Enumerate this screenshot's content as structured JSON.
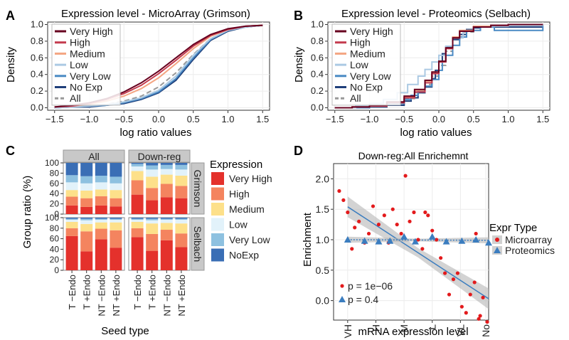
{
  "colors": {
    "very_high": "#67001f",
    "high": "#c43c4e",
    "medium": "#f4a582",
    "low": "#abc9e3",
    "very_low": "#4a8ac4",
    "no_exp": "#1f3f7a",
    "all": "#999999",
    "bar_very_high": "#e4312c",
    "bar_high": "#f4845f",
    "bar_medium": "#fde08a",
    "bar_low": "#e2f2fa",
    "bar_very_low": "#8ec1e0",
    "bar_noexp": "#3a6eb5",
    "microarray": "#e31a1c",
    "proteomics": "#3b7dbf",
    "strip": "#c8c8c8"
  },
  "chart_data": [
    {
      "panel": "A",
      "type": "line",
      "title": "Expression level - MicroArray (Grimson)",
      "xlabel": "log ratio values",
      "ylabel": "Density",
      "xlim": [
        -1.6,
        1.6
      ],
      "ylim": [
        -0.03,
        1.03
      ],
      "xticks": [
        "−1.5",
        "−1.0",
        "−0.5",
        "0.0",
        "0.5",
        "1.0",
        "1.5"
      ],
      "xtick_values": [
        -1.5,
        -1.0,
        -0.5,
        0.0,
        0.5,
        1.0,
        1.5
      ],
      "yticks": [
        "0.0",
        "0.2",
        "0.4",
        "0.6",
        "0.8",
        "1.0"
      ],
      "ytick_values": [
        0,
        0.2,
        0.4,
        0.6,
        0.8,
        1.0
      ],
      "legend": [
        "Very High",
        "High",
        "Medium",
        "Low",
        "Very Low",
        "No Exp",
        "All"
      ],
      "x": [
        -1.5,
        -1.25,
        -1.0,
        -0.75,
        -0.5,
        -0.25,
        0.0,
        0.25,
        0.5,
        0.75,
        1.0,
        1.25,
        1.5
      ],
      "series": [
        {
          "name": "Very High",
          "values": [
            0.01,
            0.03,
            0.06,
            0.11,
            0.19,
            0.3,
            0.44,
            0.6,
            0.76,
            0.88,
            0.95,
            0.98,
            0.99
          ]
        },
        {
          "name": "High",
          "values": [
            0.01,
            0.02,
            0.05,
            0.1,
            0.17,
            0.27,
            0.41,
            0.57,
            0.74,
            0.87,
            0.94,
            0.98,
            0.99
          ]
        },
        {
          "name": "Medium",
          "values": [
            0.01,
            0.02,
            0.04,
            0.08,
            0.14,
            0.23,
            0.36,
            0.53,
            0.71,
            0.86,
            0.94,
            0.98,
            0.99
          ]
        },
        {
          "name": "Low",
          "values": [
            0.0,
            0.01,
            0.02,
            0.04,
            0.07,
            0.12,
            0.21,
            0.38,
            0.63,
            0.83,
            0.93,
            0.97,
            0.99
          ]
        },
        {
          "name": "Very Low",
          "values": [
            0.0,
            0.01,
            0.02,
            0.03,
            0.06,
            0.11,
            0.19,
            0.35,
            0.6,
            0.82,
            0.93,
            0.97,
            0.99
          ]
        },
        {
          "name": "No Exp",
          "values": [
            0.0,
            0.01,
            0.01,
            0.03,
            0.05,
            0.1,
            0.18,
            0.33,
            0.58,
            0.81,
            0.92,
            0.97,
            0.99
          ]
        },
        {
          "name": "All",
          "values": [
            0.0,
            0.01,
            0.02,
            0.04,
            0.08,
            0.14,
            0.25,
            0.42,
            0.64,
            0.83,
            0.93,
            0.97,
            0.99
          ]
        }
      ]
    },
    {
      "panel": "B",
      "type": "line",
      "title": "Expression level - Proteomics (Selbach)",
      "xlabel": "log ratio values",
      "ylabel": "Density",
      "xlim": [
        -1.6,
        1.6
      ],
      "ylim": [
        -0.03,
        1.03
      ],
      "xticks": [
        "−1.5",
        "−1.0",
        "−0.5",
        "0.0",
        "0.5",
        "1.0",
        "1.5"
      ],
      "xtick_values": [
        -1.5,
        -1.0,
        -0.5,
        0.0,
        0.5,
        1.0,
        1.5
      ],
      "yticks": [
        "0.0",
        "0.2",
        "0.4",
        "0.6",
        "0.8",
        "1.0"
      ],
      "ytick_values": [
        0,
        0.2,
        0.4,
        0.6,
        0.8,
        1.0
      ],
      "legend": [
        "Very High",
        "High",
        "Medium",
        "Low",
        "Very Low",
        "No Exp",
        "All"
      ],
      "series": [
        {
          "name": "Very High",
          "x": [
            -1.5,
            -1.25,
            -1.0,
            -0.75,
            -0.5,
            -0.35,
            -0.2,
            -0.1,
            0.0,
            0.1,
            0.2,
            0.3,
            0.5,
            0.75,
            1.0,
            1.5
          ],
          "values": [
            0.0,
            0.01,
            0.03,
            0.07,
            0.14,
            0.22,
            0.33,
            0.43,
            0.56,
            0.72,
            0.84,
            0.92,
            0.97,
            0.99,
            1.0,
            1.0
          ]
        },
        {
          "name": "High",
          "x": [
            -1.5,
            -1.25,
            -1.0,
            -0.75,
            -0.5,
            -0.35,
            -0.2,
            -0.1,
            0.0,
            0.1,
            0.2,
            0.3,
            0.5,
            0.75,
            1.0,
            1.5
          ],
          "values": [
            0.0,
            0.01,
            0.02,
            0.06,
            0.12,
            0.19,
            0.3,
            0.41,
            0.55,
            0.71,
            0.84,
            0.92,
            0.97,
            0.99,
            1.0,
            1.0
          ]
        },
        {
          "name": "Medium",
          "x": [
            -1.5,
            -1.25,
            -1.0,
            -0.75,
            -0.5,
            -0.35,
            -0.2,
            -0.1,
            0.0,
            0.1,
            0.2,
            0.3,
            0.5,
            0.75,
            1.0,
            1.5
          ],
          "values": [
            0.0,
            0.01,
            0.02,
            0.06,
            0.13,
            0.21,
            0.32,
            0.43,
            0.56,
            0.72,
            0.85,
            0.93,
            0.98,
            0.99,
            1.0,
            1.0
          ]
        },
        {
          "name": "Low",
          "x": [
            -1.5,
            -1.2,
            -1.0,
            -0.8,
            -0.6,
            -0.45,
            -0.3,
            -0.2,
            -0.1,
            0.0,
            0.1,
            0.2,
            0.35,
            0.5,
            0.75,
            1.0,
            1.5
          ],
          "values": [
            0.0,
            0.02,
            0.05,
            0.1,
            0.18,
            0.28,
            0.38,
            0.46,
            0.55,
            0.63,
            0.74,
            0.84,
            0.92,
            0.97,
            0.98,
            0.99,
            1.0
          ]
        },
        {
          "name": "Very Low",
          "x": [
            -1.5,
            -1.0,
            -0.75,
            -0.5,
            -0.4,
            -0.3,
            -0.2,
            -0.1,
            0.0,
            0.05,
            0.1,
            0.2,
            0.3,
            0.4,
            0.6,
            0.75,
            0.8,
            1.0,
            1.45,
            1.5
          ],
          "values": [
            0.0,
            0.02,
            0.05,
            0.1,
            0.15,
            0.2,
            0.26,
            0.34,
            0.45,
            0.55,
            0.63,
            0.75,
            0.85,
            0.93,
            0.97,
            0.97,
            0.93,
            0.93,
            0.93,
            1.0
          ]
        },
        {
          "name": "No Exp",
          "x": [
            -1.5,
            -1.0,
            -0.75,
            -0.5,
            -0.4,
            -0.3,
            -0.2,
            -0.1,
            -0.05,
            0.0,
            0.05,
            0.1,
            0.2,
            0.3,
            0.4,
            0.5,
            0.6,
            0.75,
            1.0,
            1.5
          ],
          "values": [
            0.0,
            0.01,
            0.03,
            0.08,
            0.12,
            0.18,
            0.25,
            0.35,
            0.45,
            0.55,
            0.65,
            0.73,
            0.82,
            0.88,
            0.94,
            0.96,
            0.97,
            0.97,
            0.97,
            0.97
          ]
        },
        {
          "name": "All",
          "x": [
            -1.5,
            -1.25,
            -1.0,
            -0.75,
            -0.5,
            -0.35,
            -0.2,
            -0.1,
            0.0,
            0.1,
            0.2,
            0.3,
            0.5,
            0.75,
            1.0,
            1.5
          ],
          "values": [
            0.0,
            0.01,
            0.02,
            0.05,
            0.11,
            0.18,
            0.28,
            0.38,
            0.51,
            0.68,
            0.82,
            0.91,
            0.97,
            0.99,
            1.0,
            1.0
          ]
        }
      ]
    },
    {
      "panel": "C",
      "type": "bar",
      "stacked": true,
      "xlabel": "Seed type",
      "ylabel": "Group ratio (%)",
      "ylim": [
        0,
        100
      ],
      "yticks": [
        "0",
        "20",
        "40",
        "60",
        "80",
        "100"
      ],
      "ytick_values": [
        0,
        20,
        40,
        60,
        80,
        100
      ],
      "categories": [
        "T −Endo",
        "T +Endo",
        "NT −Endo",
        "NT +Endo"
      ],
      "facet_cols": [
        "All",
        "Down-reg"
      ],
      "facet_rows": [
        "Grimson",
        "Selbach"
      ],
      "legend_title": "Expression",
      "legend": [
        "Very High",
        "High",
        "Medium",
        "Low",
        "Very Low",
        "NoExp"
      ],
      "stack_order": [
        "Very High",
        "High",
        "Medium",
        "Low",
        "Very Low",
        "NoExp"
      ],
      "panels": [
        {
          "col": "All",
          "row": "Grimson",
          "stacks": [
            [
              17,
              17,
              13,
              15,
              14,
              24
            ],
            [
              14,
              17,
              15,
              14,
              14,
              26
            ],
            [
              17,
              18,
              13,
              14,
              13,
              25
            ],
            [
              15,
              16,
              16,
              13,
              13,
              27
            ]
          ]
        },
        {
          "col": "Down-reg",
          "row": "Grimson",
          "stacks": [
            [
              38,
              28,
              18,
              9,
              5,
              2
            ],
            [
              27,
              24,
              22,
              14,
              8,
              5
            ],
            [
              33,
              26,
              18,
              11,
              8,
              4
            ],
            [
              31,
              24,
              20,
              12,
              9,
              4
            ]
          ]
        },
        {
          "col": "All",
          "row": "Selbach",
          "stacks": [
            [
              65,
              15,
              12,
              4,
              2,
              2
            ],
            [
              36,
              38,
              14,
              7,
              3,
              2
            ],
            [
              59,
              20,
              12,
              5,
              2,
              2
            ],
            [
              43,
              33,
              15,
              5,
              2,
              2
            ]
          ]
        },
        {
          "col": "Down-reg",
          "row": "Selbach",
          "stacks": [
            [
              63,
              17,
              12,
              4,
              2,
              2
            ],
            [
              37,
              32,
              20,
              6,
              3,
              2
            ],
            [
              57,
              20,
              13,
              6,
              2,
              2
            ],
            [
              44,
              26,
              19,
              7,
              2,
              2
            ]
          ]
        }
      ]
    },
    {
      "panel": "D",
      "type": "scatter",
      "title": "Down-reg:All Enrichemnt",
      "xlabel": "mRNA expression level",
      "ylabel": "Enrichment",
      "xlim": [
        0,
        11
      ],
      "ylim": [
        -0.32,
        2.25
      ],
      "xticks": [
        "VH",
        "H",
        "M",
        "L",
        "VL",
        "No"
      ],
      "xtick_values": [
        1,
        3,
        5,
        7,
        9,
        10.8
      ],
      "yticks": [
        "0.0",
        "0.5",
        "1.0",
        "1.5",
        "2.0"
      ],
      "ytick_values": [
        0,
        0.5,
        1.0,
        1.5,
        2.0
      ],
      "legend_title": "Expr Type",
      "legend": [
        "Microarray",
        "Proteomics"
      ],
      "annotations": [
        "p = 1e−06",
        "p = 0.4"
      ],
      "series": [
        {
          "name": "Microarray",
          "x": [
            0.4,
            0.7,
            1.0,
            1.3,
            1.5,
            1.8,
            2.2,
            2.5,
            2.8,
            3.2,
            3.6,
            3.9,
            4.2,
            4.5,
            4.8,
            5.1,
            5.4,
            5.7,
            6.0,
            6.3,
            6.7,
            7.0,
            7.3,
            7.6,
            7.9,
            8.2,
            8.5,
            8.8,
            9.1,
            9.4,
            9.7,
            10.0,
            10.3,
            10.6,
            10.9,
            10.1,
            10.4,
            6.5
          ],
          "values": [
            1.8,
            1.65,
            1.45,
            0.85,
            1.2,
            1.3,
            0.95,
            1.1,
            1.55,
            1.25,
            1.4,
            0.95,
            1.5,
            1.25,
            1.1,
            2.05,
            1.3,
            1.45,
            1.0,
            0.85,
            1.4,
            1.15,
            1.0,
            0.7,
            0.45,
            0.1,
            0.35,
            0.45,
            -0.1,
            -0.2,
            0.1,
            0.3,
            -0.3,
            0.05,
            -0.35,
            1.1,
            -0.25,
            1.45
          ]
        },
        {
          "name": "Proteomics",
          "x": [
            1.0,
            2.2,
            3.2,
            4.0,
            5.0,
            5.8,
            7.0,
            8.0,
            9.1,
            10.1,
            11.0
          ],
          "values": [
            1.0,
            0.98,
            0.97,
            0.98,
            1.05,
            0.97,
            1.05,
            0.97,
            0.98,
            1.0,
            0.95
          ]
        }
      ],
      "fits": [
        {
          "name": "Microarray",
          "x": [
            1.0,
            11.0
          ],
          "values": [
            1.54,
            0.03
          ],
          "se_band": 0.17
        },
        {
          "name": "Proteomics",
          "x": [
            1.0,
            11.0
          ],
          "values": [
            1.0,
            0.99
          ],
          "se_band": 0.05
        }
      ]
    }
  ],
  "panel_labels": [
    "A",
    "B",
    "C",
    "D"
  ]
}
